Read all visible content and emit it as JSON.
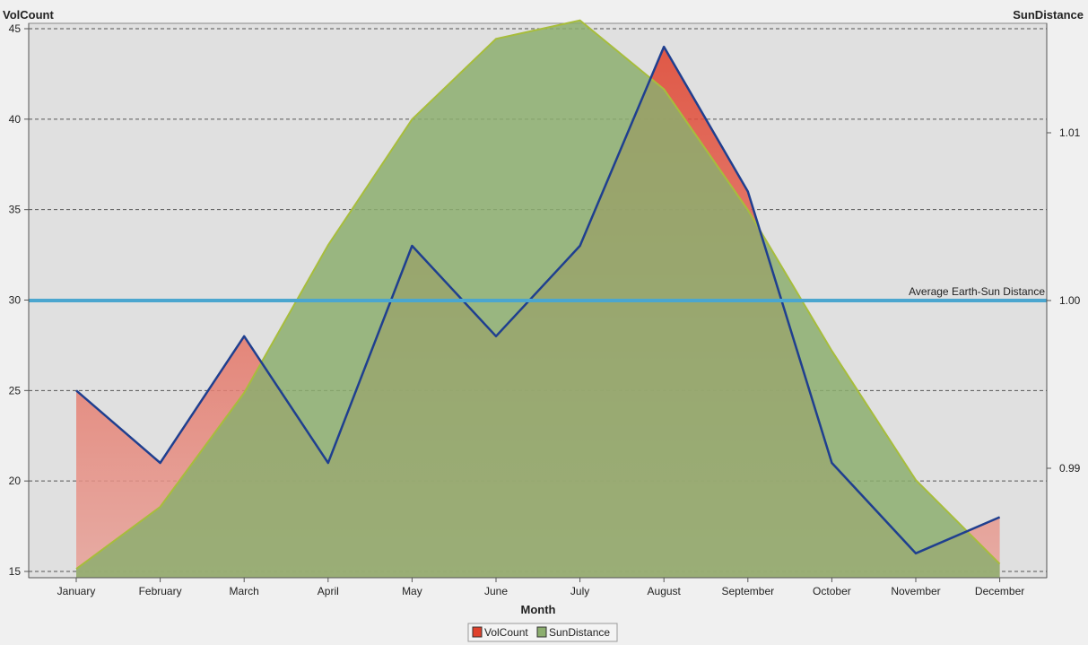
{
  "chart_data": {
    "type": "area",
    "xlabel": "Month",
    "ylabel_left": "VolCount",
    "ylabel_right": "SunDistance",
    "categories": [
      "January",
      "February",
      "March",
      "April",
      "May",
      "June",
      "July",
      "August",
      "September",
      "October",
      "November",
      "December"
    ],
    "y_left": {
      "range": [
        15,
        45
      ],
      "ticks": [
        15,
        20,
        25,
        30,
        35,
        40,
        45
      ]
    },
    "y_right": {
      "range": [
        0.9839,
        1.0167
      ],
      "ticks": [
        "0.99",
        "1.00",
        "1.01"
      ],
      "tick_values": [
        0.99,
        1.0,
        1.01
      ]
    },
    "grid": "horizontal dashed",
    "series": [
      {
        "name": "VolCount",
        "axis": "left",
        "values": [
          25,
          21,
          28,
          21,
          33,
          28,
          33,
          44,
          36,
          21,
          16,
          18
        ]
      },
      {
        "name": "SunDistance",
        "axis": "right",
        "values": [
          0.984,
          0.9877,
          0.9945,
          1.0033,
          1.0108,
          1.0156,
          1.0167,
          1.0126,
          1.0054,
          0.997,
          0.9893,
          0.9843
        ]
      }
    ],
    "reference_line": {
      "label": "Average Earth-Sun Distance",
      "axis": "right",
      "value": 1.0
    },
    "legend": {
      "placement": "bottom-center",
      "entries": [
        "VolCount",
        "SunDistance"
      ]
    }
  },
  "colors": {
    "plot_bg": "#e0e0e0",
    "page_bg": "#f0f0f0",
    "volcount_fill": "#e0412c",
    "volcount_line": "#1f3f8f",
    "sundistance_fill": "#8cae6f",
    "sundistance_line": "#a7bd3c",
    "refline": "#4ba6cf",
    "grid": "#555555"
  }
}
